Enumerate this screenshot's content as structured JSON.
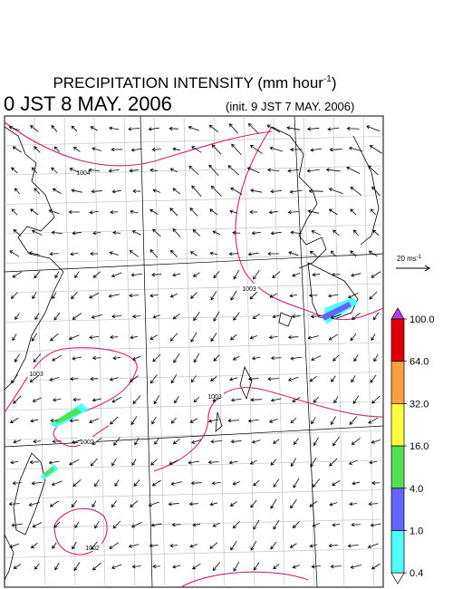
{
  "header": {
    "title": "PRECIPITATION INTENSITY (mm hour",
    "title_unit_exponent": "-1",
    "title_close": ")",
    "valid_time": "0 JST 8 MAY. 2006",
    "init_time": "(init. 9 JST 7 MAY. 2006)"
  },
  "wind_reference": {
    "label": "20 ms",
    "label_exponent": "-1"
  },
  "colorbar": {
    "levels": [
      {
        "value": 100,
        "label": "100.0"
      },
      {
        "value": 64,
        "label": "64.0"
      },
      {
        "value": 32,
        "label": "32.0"
      },
      {
        "value": 16,
        "label": "16.0"
      },
      {
        "value": 4,
        "label": "4.0"
      },
      {
        "value": 1,
        "label": "1.0"
      },
      {
        "value": 0.4,
        "label": "0.4"
      }
    ],
    "colors": [
      "#b040e8",
      "#e00000",
      "#ffa040",
      "#ffff40",
      "#50e050",
      "#6464ff",
      "#50ffff",
      "#ffffff"
    ]
  },
  "map": {
    "contour_color": "#d0207a",
    "contour_labels": [
      1004,
      1003,
      1003,
      1003,
      1002,
      1002
    ]
  }
}
